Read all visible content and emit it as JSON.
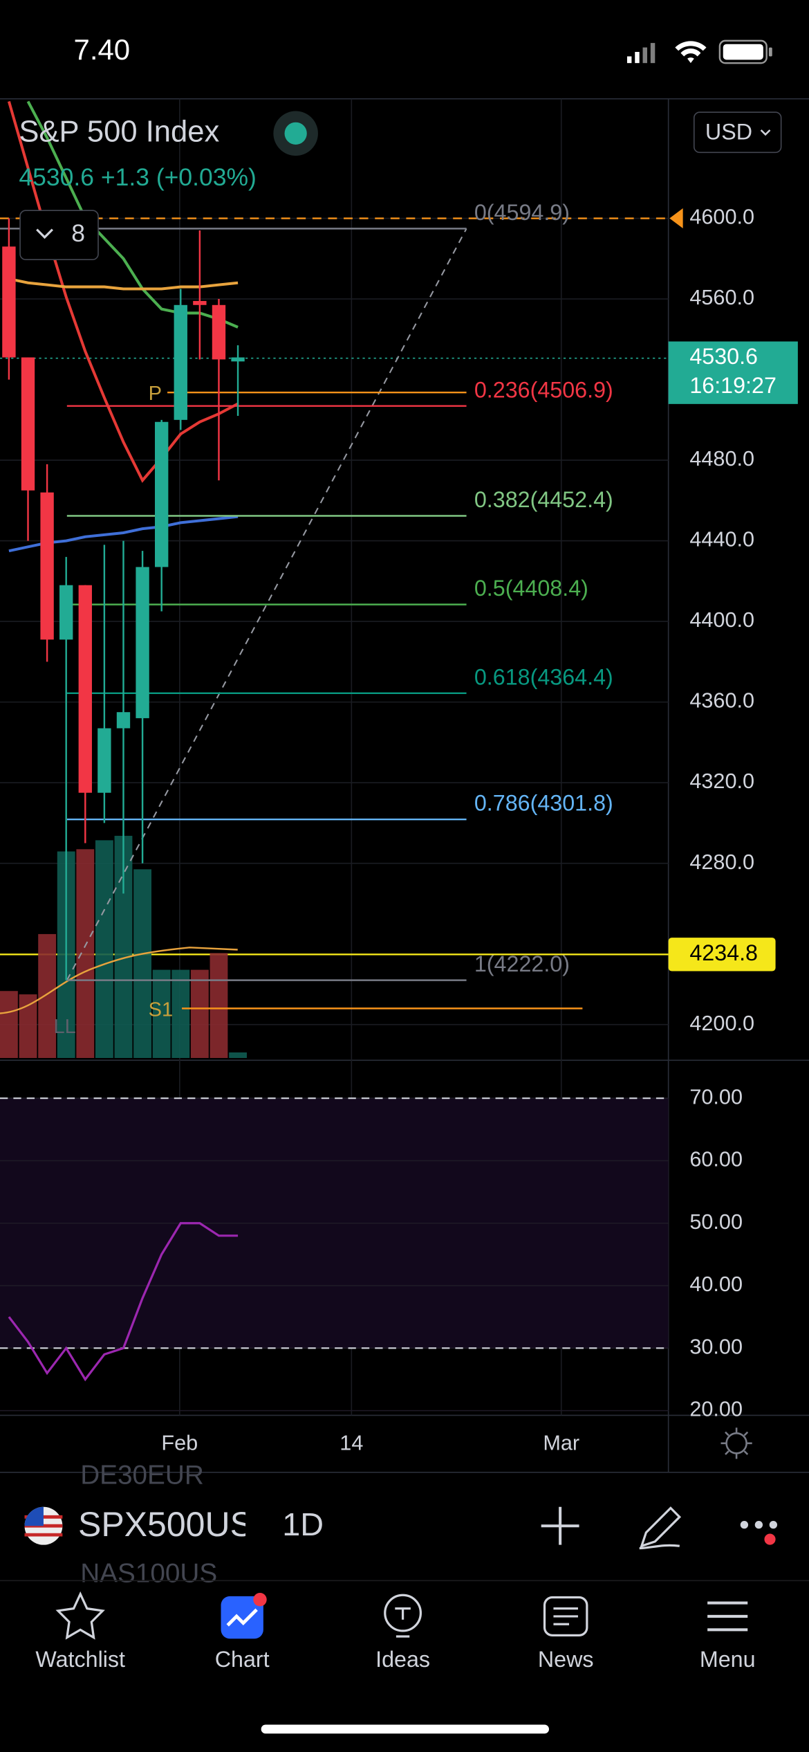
{
  "status_bar": {
    "time": "7.40"
  },
  "header": {
    "symbol_name": "S&P 500 Index",
    "last": "4530.6",
    "change": "+1.3 (+0.03%)",
    "currency": "USD",
    "indicator_count": "8"
  },
  "chart_data": {
    "type": "candlestick",
    "open": [
      4586,
      4531,
      4464,
      4391,
      4418,
      4315,
      4347,
      4352,
      4427,
      4500,
      4559,
      4557,
      4529
    ],
    "high": [
      4600,
      4531,
      4478,
      4432,
      4418,
      4438,
      4440,
      4435,
      4500,
      4565,
      4594,
      4560,
      4537
    ],
    "low": [
      4520,
      4440,
      4380,
      4222,
      4290,
      4300,
      4265,
      4280,
      4405,
      4495,
      4530,
      4470,
      4502
    ],
    "close": [
      4531,
      4465,
      4391,
      4418,
      4315,
      4347,
      4355,
      4427,
      4499,
      4557,
      4557,
      4530,
      4531
    ],
    "volume": [
      60,
      57,
      111,
      185,
      187,
      195,
      199,
      169,
      79,
      79,
      79,
      94,
      5
    ],
    "up_color": "#22ab94",
    "down_color": "#f23645",
    "ylim": [
      4183.4,
      4659.3
    ],
    "yticks": [
      {
        "value": 4200,
        "label": "4200.0"
      },
      {
        "value": 4280,
        "label": "4280.0"
      },
      {
        "value": 4320,
        "label": "4320.0"
      },
      {
        "value": 4360,
        "label": "4360.0"
      },
      {
        "value": 4400,
        "label": "4400.0"
      },
      {
        "value": 4440,
        "label": "4440.0"
      },
      {
        "value": 4480,
        "label": "4480.0"
      },
      {
        "value": 4560,
        "label": "4560.0"
      },
      {
        "value": 4600,
        "label": "4600.0"
      }
    ],
    "grid": true,
    "moving_averages": [
      {
        "color": "#4caf50",
        "values": [
          null,
          4658,
          4640,
          4620,
          4600,
          4590,
          4580,
          4565,
          4555,
          4553,
          4553,
          4550,
          4546
        ]
      },
      {
        "color": "#e53935",
        "values": [
          4658,
          4625,
          4592,
          4561,
          4534,
          4511,
          4489,
          4470,
          4481,
          4493,
          4499,
          4503,
          4508
        ]
      },
      {
        "color": "#e8a33d",
        "values": [
          4570,
          4568,
          4567,
          4566,
          4566,
          4566,
          4565,
          4565,
          4565,
          4566,
          4566,
          4567,
          4568
        ]
      },
      {
        "color": "#3f6fd8",
        "values": [
          4435,
          4437,
          4439,
          4440,
          4442,
          4443,
          4444,
          4446,
          4447,
          4449,
          4450,
          4451,
          4452
        ]
      }
    ],
    "fib_levels": [
      {
        "label": "0(4594.9)",
        "value": 4594.9,
        "color": "#787b86"
      },
      {
        "label": "0.236(4506.9)",
        "value": 4506.9,
        "color": "#f23645"
      },
      {
        "label": "0.382(4452.4)",
        "value": 4452.4,
        "color": "#81c784"
      },
      {
        "label": "0.5(4408.4)",
        "value": 4408.4,
        "color": "#4caf50"
      },
      {
        "label": "0.618(4364.4)",
        "value": 4364.4,
        "color": "#089981"
      },
      {
        "label": "0.786(4301.8)",
        "value": 4301.8,
        "color": "#64b5f6"
      },
      {
        "label": "1(4222.0)",
        "value": 4222.0,
        "color": "#787b86"
      }
    ],
    "pivots": [
      {
        "label": "P",
        "value": 4513.6
      },
      {
        "label": "S1",
        "value": 4208
      }
    ],
    "annotation": "LL",
    "alert": 4600,
    "last_price": {
      "value": 4530.6,
      "label": "4530.6",
      "time": "16:19:27"
    },
    "level": 4234.8,
    "x_labels": [
      "Feb",
      "14",
      "Mar"
    ],
    "rsi": {
      "ylim": [
        19.6,
        75.9
      ],
      "yticks": [
        {
          "value": 70,
          "label": "70.00"
        },
        {
          "value": 60,
          "label": "60.00"
        },
        {
          "value": 50,
          "label": "50.00"
        },
        {
          "value": 40,
          "label": "40.00"
        },
        {
          "value": 30,
          "label": "30.00"
        },
        {
          "value": 20,
          "label": "20.00"
        }
      ],
      "bands": [
        70,
        30
      ],
      "color": "#9c27b0",
      "values": [
        35,
        31,
        26,
        30,
        25,
        29,
        30,
        38,
        45,
        50,
        50,
        48,
        48
      ]
    }
  },
  "toolbar": {
    "symbol": "SPX500US",
    "interval": "1D",
    "list_above": "DE30EUR",
    "list_below": "NAS100US"
  },
  "tabs": [
    "Watchlist",
    "Chart",
    "Ideas",
    "News",
    "Menu"
  ]
}
